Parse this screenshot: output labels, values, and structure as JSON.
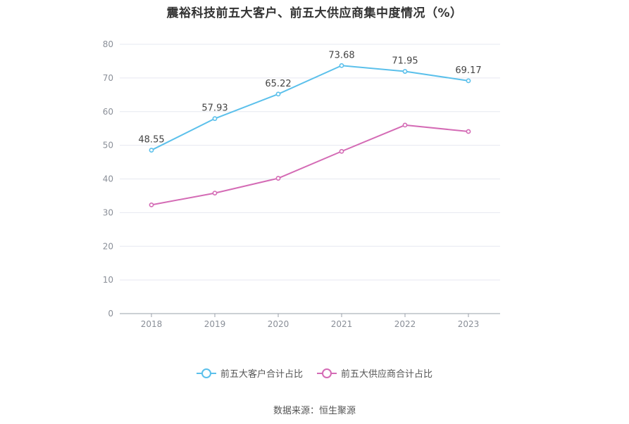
{
  "title": "震裕科技前五大客户、前五大供应商集中度情况（%）",
  "source": "数据来源：恒生聚源",
  "colors": {
    "customers": "#5bc0eb",
    "suppliers": "#d46bb5",
    "grid": "#e6e8f0",
    "axis": "#9aa0aa",
    "tick_text": "#8a8f98",
    "label_text": "#444444"
  },
  "chart_data": {
    "type": "line",
    "title": "震裕科技前五大客户、前五大供应商集中度情况（%）",
    "x": [
      "2018",
      "2019",
      "2020",
      "2021",
      "2022",
      "2023"
    ],
    "ylim": [
      0,
      80
    ],
    "yticks": [
      0,
      10,
      20,
      30,
      40,
      50,
      60,
      70,
      80
    ],
    "grid": true,
    "legend_position": "bottom-center",
    "series": [
      {
        "name": "前五大客户合计占比",
        "values": [
          48.55,
          57.93,
          65.22,
          73.68,
          71.95,
          69.17
        ],
        "labels": [
          "48.55",
          "57.93",
          "65.22",
          "73.68",
          "71.95",
          "69.17"
        ],
        "color": "#5bc0eb"
      },
      {
        "name": "前五大供应商合计占比",
        "values": [
          32.3,
          35.8,
          40.2,
          48.2,
          56.0,
          54.1
        ],
        "labels": [],
        "color": "#d46bb5"
      }
    ]
  }
}
